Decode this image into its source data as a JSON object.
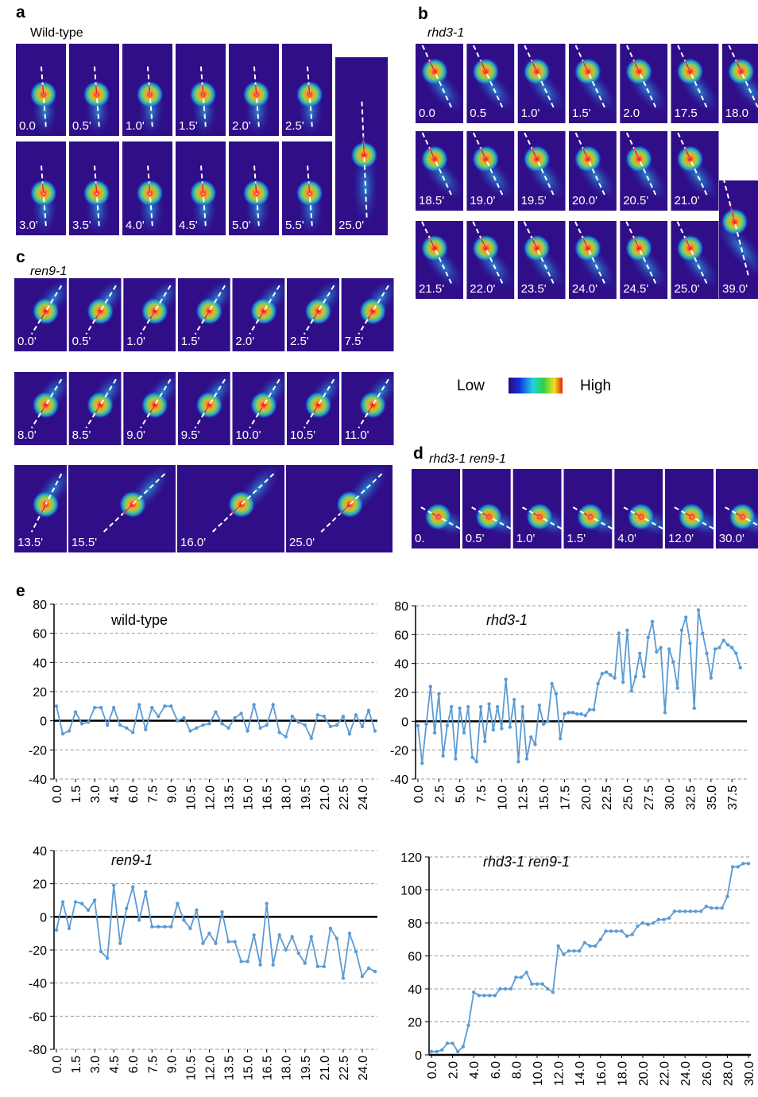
{
  "panels": [
    {
      "label": "a",
      "title": "Wild-type",
      "frames": [
        "0.0",
        "0.5'",
        "1.0'",
        "1.5'",
        "2.0'",
        "2.5'",
        "3.0'",
        "3.5'",
        "4.0'",
        "4.5'",
        "5.0'",
        "5.5'",
        "25.0'"
      ]
    },
    {
      "label": "b",
      "title": "rhd3-1",
      "frames": [
        "0.0",
        "0.5",
        "1.0'",
        "1.5'",
        "2.0",
        "17.5",
        "18.0",
        "18.5'",
        "19.0'",
        "19.5'",
        "20.0'",
        "20.5'",
        "21.0'",
        "21.5'",
        "22.0'",
        "23.5'",
        "24.0'",
        "24.5'",
        "25.0'",
        "39.0'"
      ]
    },
    {
      "label": "c",
      "title": "ren9-1",
      "frames": [
        "0.0'",
        "0.5'",
        "1.0'",
        "1.5'",
        "2.0'",
        "2.5'",
        "7.5'",
        "8.0'",
        "8.5'",
        "9.0'",
        "9.5'",
        "10.0'",
        "10.5'",
        "11.0'",
        "13.5'",
        "15.5'",
        "16.0'",
        "25.0'"
      ]
    },
    {
      "label": "d",
      "title": "rhd3-1 ren9-1",
      "frames": [
        "0.",
        "0.5'",
        "1.0'",
        "1.5'",
        "4.0'",
        "12.0'",
        "30.0'"
      ]
    }
  ],
  "colorbar": {
    "low": "Low",
    "high": "High"
  },
  "panel_e": {
    "label": "e"
  },
  "chart_data": [
    {
      "type": "line",
      "title": "wild-type",
      "color": "#5b9bd5",
      "grid": true,
      "x": [
        0,
        0.5,
        1,
        1.5,
        2,
        2.5,
        3,
        3.5,
        4,
        4.5,
        5,
        5.5,
        6,
        6.5,
        7,
        7.5,
        8,
        8.5,
        9,
        9.5,
        10,
        10.5,
        11,
        11.5,
        12,
        12.5,
        13,
        13.5,
        14,
        14.5,
        15,
        15.5,
        16,
        16.5,
        17,
        17.5,
        18,
        18.5,
        19,
        19.5,
        20,
        20.5,
        21,
        21.5,
        22,
        22.5,
        23,
        23.5,
        24,
        24.5,
        25
      ],
      "values": [
        10,
        -9,
        -7,
        6,
        -2,
        -1,
        9,
        9,
        -3,
        9,
        -3,
        -5,
        -8,
        11,
        -6,
        9,
        3,
        10,
        10,
        0,
        2,
        -7,
        -5,
        -3,
        -2,
        6,
        -2,
        -5,
        2,
        5,
        -7,
        11,
        -5,
        -3,
        11,
        -8,
        -11,
        3,
        -1,
        -3,
        -12,
        4,
        3,
        -4,
        -3,
        3,
        -9,
        4,
        -4,
        7,
        -7
      ],
      "xlim": [
        0,
        25
      ],
      "ylim": [
        -40,
        80
      ],
      "yticks": [
        -40,
        -20,
        0,
        20,
        40,
        60,
        80
      ],
      "xticks": [
        {
          "value": 0,
          "label": "0.0"
        },
        1.5,
        {
          "value": 3,
          "label": "3.0"
        },
        4.5,
        {
          "value": 6,
          "label": "6.0"
        },
        7.5,
        {
          "value": 9,
          "label": "9.0"
        },
        10.5,
        {
          "value": 12,
          "label": "12.0"
        },
        13.5,
        {
          "value": 15,
          "label": "15.0"
        },
        16.5,
        {
          "value": 18,
          "label": "18.0"
        },
        19.5,
        {
          "value": 21,
          "label": "21.0"
        },
        22.5,
        {
          "value": 24,
          "label": "24.0"
        }
      ]
    },
    {
      "type": "line",
      "title": "rhd3-1",
      "color": "#5b9bd5",
      "grid": true,
      "x": [
        0,
        0.5,
        1,
        1.5,
        2,
        2.5,
        3,
        3.5,
        4,
        4.5,
        5,
        5.5,
        6,
        6.5,
        7,
        7.5,
        8,
        8.5,
        9,
        9.5,
        10,
        10.5,
        11,
        11.5,
        12,
        12.5,
        13,
        13.5,
        14,
        14.5,
        15,
        15.5,
        16,
        16.5,
        17,
        17.5,
        18,
        18.5,
        19,
        19.5,
        20,
        20.5,
        21,
        21.5,
        22,
        22.5,
        23,
        23.5,
        24,
        24.5,
        25,
        25.5,
        26,
        26.5,
        27,
        27.5,
        28,
        28.5,
        29,
        29.5,
        30,
        30.5,
        31,
        31.5,
        32,
        32.5,
        33,
        33.5,
        34,
        34.5,
        35,
        35.5,
        36,
        36.5,
        37,
        37.5,
        38,
        38.5
      ],
      "values": [
        -3,
        -29,
        -2,
        24,
        -8,
        19,
        -24,
        -3,
        10,
        -26,
        9,
        -8,
        10,
        -25,
        -28,
        10,
        -14,
        12,
        -6,
        10,
        -5,
        29,
        -4,
        15,
        -28,
        10,
        -26,
        -11,
        -16,
        11,
        -2,
        0,
        26,
        19,
        -12,
        5,
        6,
        6,
        5,
        5,
        4,
        8,
        8,
        26,
        33,
        34,
        32,
        30,
        61,
        27,
        63,
        21,
        31,
        47,
        31,
        58,
        69,
        48,
        51,
        6,
        50,
        41,
        23,
        63,
        72,
        54,
        9,
        77,
        61,
        47,
        30,
        50,
        51,
        56,
        53,
        51,
        47,
        37
      ],
      "xlim": [
        0,
        39
      ],
      "ylim": [
        -40,
        80
      ],
      "yticks": [
        -40,
        -20,
        0,
        20,
        40,
        60,
        80
      ],
      "xticks": [
        {
          "value": 0,
          "label": "0.0"
        },
        2.5,
        {
          "value": 5,
          "label": "5.0"
        },
        7.5,
        {
          "value": 10,
          "label": "10.0"
        },
        12.5,
        {
          "value": 15,
          "label": "15.0"
        },
        17.5,
        {
          "value": 20,
          "label": "20.0"
        },
        22.5,
        {
          "value": 25,
          "label": "25.0"
        },
        27.5,
        {
          "value": 30,
          "label": "30.0"
        },
        32.5,
        {
          "value": 35,
          "label": "35.0"
        },
        37.5
      ]
    },
    {
      "type": "line",
      "title": "ren9-1",
      "color": "#5b9bd5",
      "grid": true,
      "x": [
        0,
        0.5,
        1,
        1.5,
        2,
        2.5,
        3,
        3.5,
        4,
        4.5,
        5,
        5.5,
        6,
        6.5,
        7,
        7.5,
        8,
        8.5,
        9,
        9.5,
        10,
        10.5,
        11,
        11.5,
        12,
        12.5,
        13,
        13.5,
        14,
        14.5,
        15,
        15.5,
        16,
        16.5,
        17,
        17.5,
        18,
        18.5,
        19,
        19.5,
        20,
        20.5,
        21,
        21.5,
        22,
        22.5,
        23,
        23.5,
        24,
        24.5,
        25
      ],
      "values": [
        -8,
        9,
        -7,
        9,
        8,
        4,
        10,
        -21,
        -25,
        19,
        -16,
        5,
        18,
        -2,
        15,
        -6,
        -6,
        -6,
        -6,
        8,
        -2,
        -7,
        4,
        -16,
        -10,
        -16,
        3,
        -15,
        -15,
        -27,
        -27,
        -11,
        -29,
        8,
        -29,
        -11,
        -20,
        -12,
        -22,
        -28,
        -12,
        -30,
        -30,
        -7,
        -13,
        -37,
        -10,
        -21,
        -36,
        -31,
        -33
      ],
      "xlim": [
        0,
        25
      ],
      "ylim": [
        -80,
        40
      ],
      "yticks": [
        -80,
        -60,
        -40,
        -20,
        0,
        20,
        40
      ],
      "xticks": [
        {
          "value": 0,
          "label": "0.0"
        },
        1.5,
        {
          "value": 3,
          "label": "3.0"
        },
        4.5,
        {
          "value": 6,
          "label": "6.0"
        },
        7.5,
        {
          "value": 9,
          "label": "9.0"
        },
        10.5,
        {
          "value": 12,
          "label": "12.0"
        },
        13.5,
        {
          "value": 15,
          "label": "15.0"
        },
        16.5,
        {
          "value": 18,
          "label": "18.0"
        },
        19.5,
        {
          "value": 21,
          "label": "21.0"
        },
        22.5,
        {
          "value": 24,
          "label": "24.0"
        }
      ]
    },
    {
      "type": "line",
      "title": "rhd3-1 ren9-1",
      "color": "#5b9bd5",
      "grid": true,
      "x": [
        0,
        0.5,
        1,
        1.5,
        2,
        2.5,
        3,
        3.5,
        4,
        4.5,
        5,
        5.5,
        6,
        6.5,
        7,
        7.5,
        8,
        8.5,
        9,
        9.5,
        10,
        10.5,
        11,
        11.5,
        12,
        12.5,
        13,
        13.5,
        14,
        14.5,
        15,
        15.5,
        16,
        16.5,
        17,
        17.5,
        18,
        18.5,
        19,
        19.5,
        20,
        20.5,
        21,
        21.5,
        22,
        22.5,
        23,
        23.5,
        24,
        24.5,
        25,
        25.5,
        26,
        26.5,
        27,
        27.5,
        28,
        28.5,
        29,
        29.5,
        30
      ],
      "values": [
        2,
        2,
        3,
        7,
        7,
        2,
        5,
        18,
        38,
        36,
        36,
        36,
        36,
        40,
        40,
        40,
        47,
        47,
        50,
        43,
        43,
        43,
        40,
        38,
        66,
        61,
        63,
        63,
        63,
        68,
        66,
        66,
        70,
        75,
        75,
        75,
        75,
        72,
        73,
        78,
        80,
        79,
        80,
        82,
        82,
        83,
        87,
        87,
        87,
        87,
        87,
        87,
        90,
        89,
        89,
        89,
        96,
        114,
        114,
        116,
        116
      ],
      "xlim": [
        0,
        30
      ],
      "ylim": [
        0,
        120
      ],
      "yticks": [
        0,
        20,
        40,
        60,
        80,
        100,
        120
      ],
      "xticks": [
        {
          "value": 0,
          "label": "0.0"
        },
        {
          "value": 2,
          "label": "2.0"
        },
        {
          "value": 4,
          "label": "4.0"
        },
        {
          "value": 6,
          "label": "6.0"
        },
        {
          "value": 8,
          "label": "8.0"
        },
        {
          "value": 10,
          "label": "10.0"
        },
        {
          "value": 12,
          "label": "12.0"
        },
        {
          "value": 14,
          "label": "14.0"
        },
        {
          "value": 16,
          "label": "16.0"
        },
        {
          "value": 18,
          "label": "18.0"
        },
        {
          "value": 20,
          "label": "20.0"
        },
        {
          "value": 22,
          "label": "22.0"
        },
        {
          "value": 24,
          "label": "24.0"
        },
        {
          "value": 26,
          "label": "26.0"
        },
        {
          "value": 28,
          "label": "28.0"
        },
        {
          "value": 30,
          "label": "30.0"
        }
      ]
    }
  ]
}
